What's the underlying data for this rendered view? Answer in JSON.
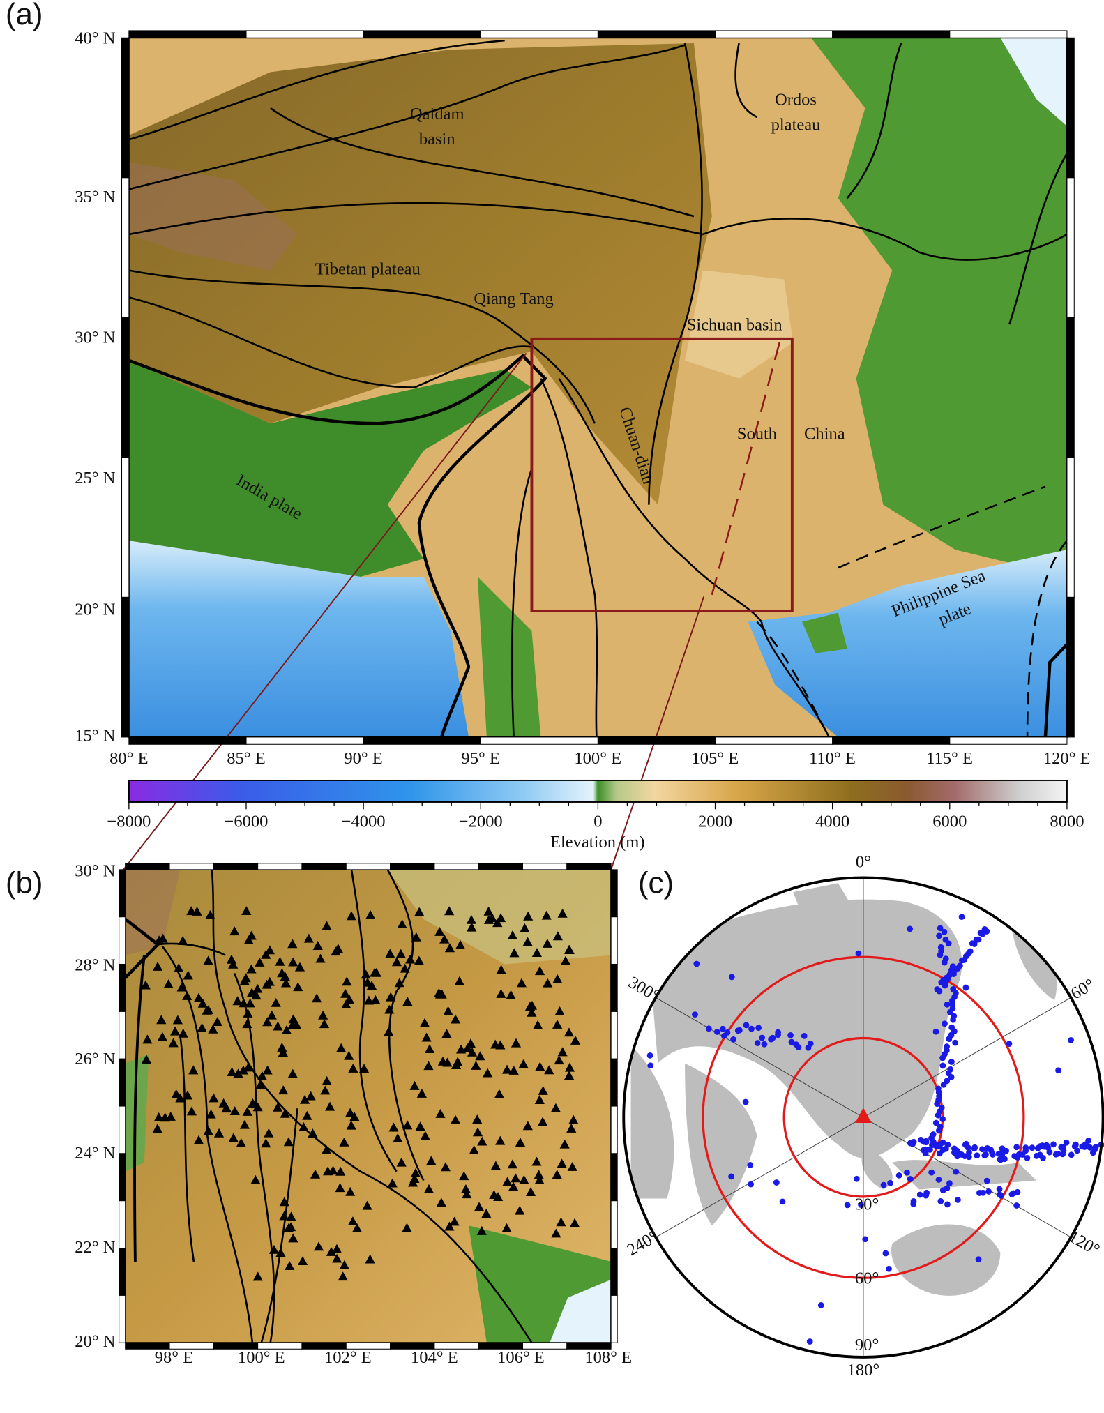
{
  "panels": {
    "a": {
      "label": "(a)",
      "lat_labels": [
        "40° N",
        "35° N",
        "30° N",
        "25° N",
        "20° N",
        "15° N"
      ],
      "lon_labels": [
        "80° E",
        "85° E",
        "90° E",
        "95° E",
        "100° E",
        "105° E",
        "110° E",
        "115° E",
        "120° E"
      ],
      "regions": [
        {
          "lines": [
            "Qaidam",
            "basin"
          ]
        },
        {
          "lines": [
            "Ordos",
            "plateau"
          ]
        },
        {
          "lines": [
            "Tibetan plateau"
          ]
        },
        {
          "lines": [
            "Qiang Tang"
          ]
        },
        {
          "lines": [
            "Sichuan basin"
          ]
        },
        {
          "lines": [
            "Chuan-dian"
          ]
        },
        {
          "lines": [
            "South"
          ]
        },
        {
          "lines": [
            "China"
          ]
        },
        {
          "lines": [
            "India plate"
          ]
        },
        {
          "lines": [
            "Philippine Sea",
            "plate"
          ]
        }
      ]
    },
    "colorbar": {
      "tick_labels": [
        "−8000",
        "−6000",
        "−4000",
        "−2000",
        "0",
        "2000",
        "4000",
        "6000",
        "8000"
      ],
      "title": "Elevation (m)"
    },
    "b": {
      "label": "(b)",
      "lat_labels": [
        "30° N",
        "28° N",
        "26° N",
        "24° N",
        "22° N",
        "20° N"
      ],
      "lon_labels": [
        "98° E",
        "100° E",
        "102° E",
        "104° E",
        "106° E",
        "108° E"
      ]
    },
    "c": {
      "label": "(c)",
      "azimuth_labels": [
        "0°",
        "60°",
        "120°",
        "180°",
        "240°",
        "300°"
      ],
      "distance_labels": [
        "30°",
        "60°",
        "90°"
      ]
    }
  }
}
